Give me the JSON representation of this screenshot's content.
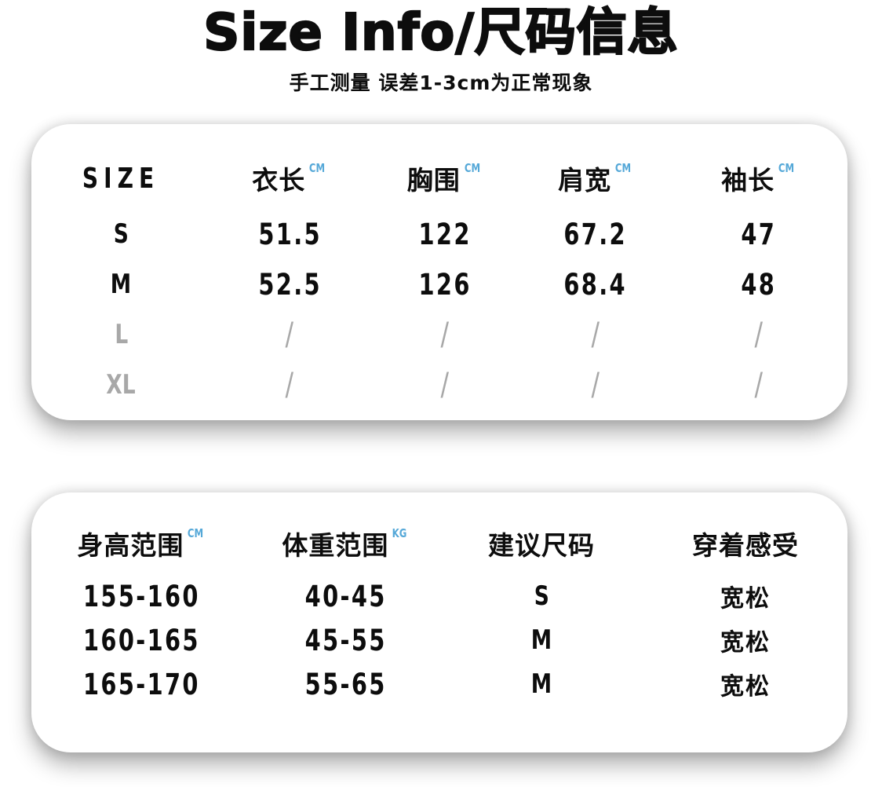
{
  "page": {
    "title": "Size Info/尺码信息",
    "subtitle": "手工测量 误差1-3cm为正常现象"
  },
  "colors": {
    "accent_blue": "#55a8d8",
    "muted_gray": "#a8a8a8",
    "ink": "#0d0d0d"
  },
  "size_table": {
    "columns": [
      {
        "label": "SIZE",
        "unit": ""
      },
      {
        "label": "衣长",
        "unit": "CM"
      },
      {
        "label": "胸围",
        "unit": "CM"
      },
      {
        "label": "肩宽",
        "unit": "CM"
      },
      {
        "label": "袖长",
        "unit": "CM"
      }
    ],
    "rows": [
      {
        "size": "S",
        "values": [
          "51.5",
          "122",
          "67.2",
          "47"
        ]
      },
      {
        "size": "M",
        "values": [
          "52.5",
          "126",
          "68.4",
          "48"
        ]
      },
      {
        "size": "L",
        "values": [
          "/",
          "/",
          "/",
          "/"
        ]
      },
      {
        "size": "XL",
        "values": [
          "/",
          "/",
          "/",
          "/"
        ]
      }
    ]
  },
  "fit_table": {
    "columns": [
      {
        "label": "身高范围",
        "unit": "CM"
      },
      {
        "label": "体重范围",
        "unit": "KG"
      },
      {
        "label": "建议尺码",
        "unit": ""
      },
      {
        "label": "穿着感受",
        "unit": ""
      }
    ],
    "rows": [
      [
        "155-160",
        "40-45",
        "S",
        "宽松"
      ],
      [
        "160-165",
        "45-55",
        "M",
        "宽松"
      ],
      [
        "165-170",
        "55-65",
        "M",
        "宽松"
      ]
    ]
  }
}
